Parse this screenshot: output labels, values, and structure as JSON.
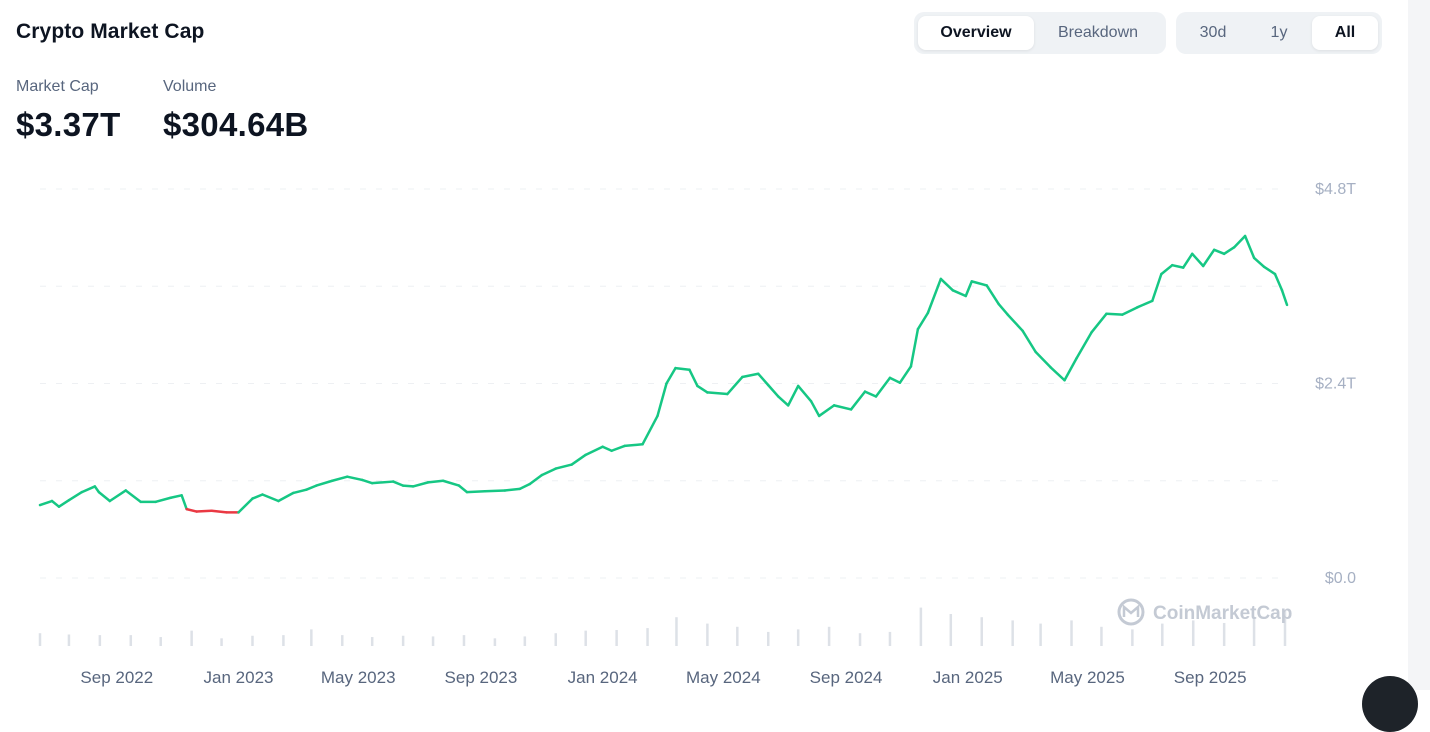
{
  "header": {
    "title": "Crypto Market Cap",
    "view_tabs": [
      {
        "label": "Overview",
        "active": true
      },
      {
        "label": "Breakdown",
        "active": false
      }
    ],
    "range_tabs": [
      {
        "label": "30d",
        "active": false
      },
      {
        "label": "1y",
        "active": false
      },
      {
        "label": "All",
        "active": true
      }
    ]
  },
  "stats": {
    "market_cap_label": "Market Cap",
    "market_cap_value": "$3.37T",
    "volume_label": "Volume",
    "volume_value": "$304.64B"
  },
  "watermark": "CoinMarketCap",
  "colors": {
    "up": "#16c784",
    "down": "#ea3943",
    "grid": "#eef0f3",
    "volume": "#dde1e7",
    "text_muted": "#58667e"
  },
  "chart_data": {
    "type": "line",
    "y_unit": "USD (trillions)",
    "ylim": [
      0,
      4.8
    ],
    "y_ticks": [
      {
        "value": 0,
        "label": "$0.0"
      },
      {
        "value": 2.4,
        "label": "$2.4T"
      },
      {
        "value": 4.8,
        "label": "$4.8T"
      }
    ],
    "x_range": [
      "2022-06-16",
      "2025-11-17"
    ],
    "x_ticks": [
      {
        "date": "2022-09-01",
        "label": "Sep 2022"
      },
      {
        "date": "2023-01-01",
        "label": "Jan 2023"
      },
      {
        "date": "2023-05-01",
        "label": "May 2023"
      },
      {
        "date": "2023-09-01",
        "label": "Sep 2023"
      },
      {
        "date": "2024-01-01",
        "label": "Jan 2024"
      },
      {
        "date": "2024-05-01",
        "label": "May 2024"
      },
      {
        "date": "2024-09-01",
        "label": "Sep 2024"
      },
      {
        "date": "2025-01-01",
        "label": "Jan 2025"
      },
      {
        "date": "2025-05-01",
        "label": "May 2025"
      },
      {
        "date": "2025-09-01",
        "label": "Sep 2025"
      }
    ],
    "grid": true,
    "baseline": 0.92,
    "series": [
      {
        "x": [
          "2022-06-16",
          "2022-06-28",
          "2022-07-05",
          "2022-07-15",
          "2022-07-28",
          "2022-08-10",
          "2022-08-14",
          "2022-08-25",
          "2022-09-10",
          "2022-09-25",
          "2022-10-10",
          "2022-10-25",
          "2022-11-05",
          "2022-11-10",
          "2022-11-20",
          "2022-12-05",
          "2022-12-20",
          "2023-01-01",
          "2023-01-15",
          "2023-01-25",
          "2023-02-10",
          "2023-02-25",
          "2023-03-10",
          "2023-03-20",
          "2023-04-05",
          "2023-04-20",
          "2023-05-05",
          "2023-05-15",
          "2023-06-05",
          "2023-06-15",
          "2023-06-25",
          "2023-07-10",
          "2023-07-25",
          "2023-08-10",
          "2023-08-18",
          "2023-09-05",
          "2023-09-25",
          "2023-10-10",
          "2023-10-20",
          "2023-11-01",
          "2023-11-15",
          "2023-12-01",
          "2023-12-15",
          "2024-01-01",
          "2024-01-10",
          "2024-01-23",
          "2024-02-10",
          "2024-02-25",
          "2024-03-05",
          "2024-03-14",
          "2024-03-28",
          "2024-04-05",
          "2024-04-15",
          "2024-05-05",
          "2024-05-20",
          "2024-06-05",
          "2024-06-15",
          "2024-06-25",
          "2024-07-05",
          "2024-07-15",
          "2024-07-28",
          "2024-08-05",
          "2024-08-20",
          "2024-09-06",
          "2024-09-20",
          "2024-10-01",
          "2024-10-15",
          "2024-10-25",
          "2024-11-05",
          "2024-11-12",
          "2024-11-22",
          "2024-12-05",
          "2024-12-17",
          "2024-12-30",
          "2025-01-05",
          "2025-01-20",
          "2025-02-01",
          "2025-02-10",
          "2025-02-25",
          "2025-03-10",
          "2025-03-25",
          "2025-04-08",
          "2025-04-20",
          "2025-05-05",
          "2025-05-20",
          "2025-06-05",
          "2025-06-20",
          "2025-07-05",
          "2025-07-14",
          "2025-07-25",
          "2025-08-05",
          "2025-08-14",
          "2025-08-25",
          "2025-09-05",
          "2025-09-15",
          "2025-09-25",
          "2025-10-06",
          "2025-10-15",
          "2025-10-25",
          "2025-11-05",
          "2025-11-12",
          "2025-11-17"
        ],
        "y": [
          0.9,
          0.95,
          0.88,
          0.96,
          1.06,
          1.13,
          1.06,
          0.95,
          1.08,
          0.94,
          0.94,
          0.99,
          1.02,
          0.85,
          0.82,
          0.83,
          0.81,
          0.81,
          0.98,
          1.03,
          0.95,
          1.05,
          1.09,
          1.14,
          1.2,
          1.25,
          1.21,
          1.17,
          1.19,
          1.14,
          1.13,
          1.18,
          1.2,
          1.14,
          1.06,
          1.07,
          1.08,
          1.1,
          1.16,
          1.27,
          1.35,
          1.4,
          1.52,
          1.62,
          1.57,
          1.63,
          1.65,
          2.0,
          2.4,
          2.59,
          2.57,
          2.37,
          2.29,
          2.27,
          2.48,
          2.52,
          2.38,
          2.24,
          2.13,
          2.37,
          2.18,
          2.0,
          2.13,
          2.08,
          2.3,
          2.24,
          2.47,
          2.41,
          2.61,
          3.07,
          3.27,
          3.69,
          3.55,
          3.48,
          3.66,
          3.61,
          3.38,
          3.25,
          3.05,
          2.79,
          2.6,
          2.44,
          2.71,
          3.03,
          3.26,
          3.25,
          3.34,
          3.42,
          3.75,
          3.86,
          3.83,
          4.0,
          3.85,
          4.05,
          4.0,
          4.08,
          4.22,
          3.95,
          3.84,
          3.75,
          3.55,
          3.37
        ]
      }
    ],
    "volume_series": {
      "y_unit": "relative",
      "x": [
        "2022-06-16",
        "2022-07-15",
        "2022-08-15",
        "2022-09-15",
        "2022-10-15",
        "2022-11-15",
        "2022-12-15",
        "2023-01-15",
        "2023-02-15",
        "2023-03-15",
        "2023-04-15",
        "2023-05-15",
        "2023-06-15",
        "2023-07-15",
        "2023-08-15",
        "2023-09-15",
        "2023-10-15",
        "2023-11-15",
        "2023-12-15",
        "2024-01-15",
        "2024-02-15",
        "2024-03-15",
        "2024-04-15",
        "2024-05-15",
        "2024-06-15",
        "2024-07-15",
        "2024-08-15",
        "2024-09-15",
        "2024-10-15",
        "2024-11-15",
        "2024-12-15",
        "2025-01-15",
        "2025-02-15",
        "2025-03-15",
        "2025-04-15",
        "2025-05-15",
        "2025-06-15",
        "2025-07-15",
        "2025-08-15",
        "2025-09-15",
        "2025-10-15",
        "2025-11-15"
      ],
      "y": [
        0.2,
        0.18,
        0.17,
        0.17,
        0.14,
        0.24,
        0.12,
        0.16,
        0.17,
        0.26,
        0.17,
        0.14,
        0.16,
        0.15,
        0.17,
        0.12,
        0.15,
        0.2,
        0.24,
        0.25,
        0.28,
        0.45,
        0.35,
        0.3,
        0.22,
        0.26,
        0.3,
        0.2,
        0.22,
        0.6,
        0.5,
        0.45,
        0.4,
        0.35,
        0.4,
        0.3,
        0.26,
        0.35,
        0.4,
        0.36,
        0.45,
        0.55
      ]
    }
  }
}
